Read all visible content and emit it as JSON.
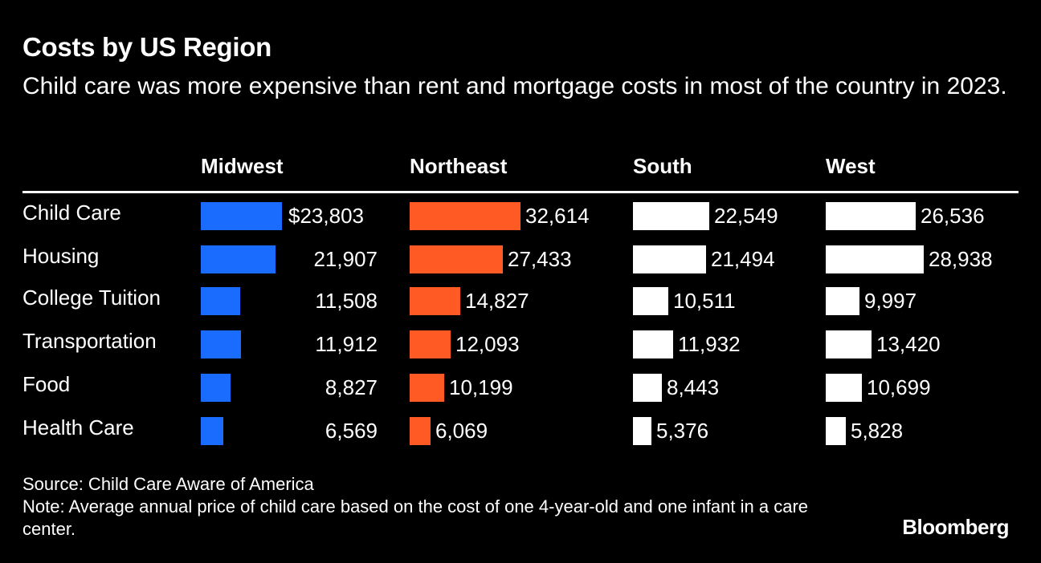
{
  "title": "Costs by US Region",
  "subtitle": "Child care was more expensive than rent and mortgage costs in most of the country in 2023.",
  "source": "Source: Child Care Aware of America",
  "note": "Note: Average annual price of child care based on the cost of one 4-year-old and one infant in a care center.",
  "brand": "Bloomberg",
  "colors": {
    "Midwest": "#1a6cff",
    "Northeast": "#ff5a24",
    "South": "#ffffff",
    "West": "#ffffff"
  },
  "chart_data": {
    "type": "bar",
    "orientation": "horizontal",
    "title": "Costs by US Region",
    "categories": [
      "Child Care",
      "Housing",
      "College Tuition",
      "Transportation",
      "Food",
      "Health Care"
    ],
    "series": [
      {
        "name": "Midwest",
        "values": [
          23803,
          21907,
          11508,
          11912,
          8827,
          6569
        ],
        "labels": [
          "$23,803",
          "21,907",
          "11,508",
          "11,912",
          "8,827",
          "6,569"
        ]
      },
      {
        "name": "Northeast",
        "values": [
          32614,
          27433,
          14827,
          12093,
          10199,
          6069
        ],
        "labels": [
          "32,614",
          "27,433",
          "14,827",
          "12,093",
          "10,199",
          "6,069"
        ]
      },
      {
        "name": "South",
        "values": [
          22549,
          21494,
          10511,
          11932,
          8443,
          5376
        ],
        "labels": [
          "22,549",
          "21,494",
          "10,511",
          "11,932",
          "8,443",
          "5,376"
        ]
      },
      {
        "name": "West",
        "values": [
          26536,
          28938,
          9997,
          13420,
          10699,
          5828
        ],
        "labels": [
          "26,536",
          "28,938",
          "9,997",
          "13,420",
          "10,699",
          "5,828"
        ]
      }
    ]
  }
}
